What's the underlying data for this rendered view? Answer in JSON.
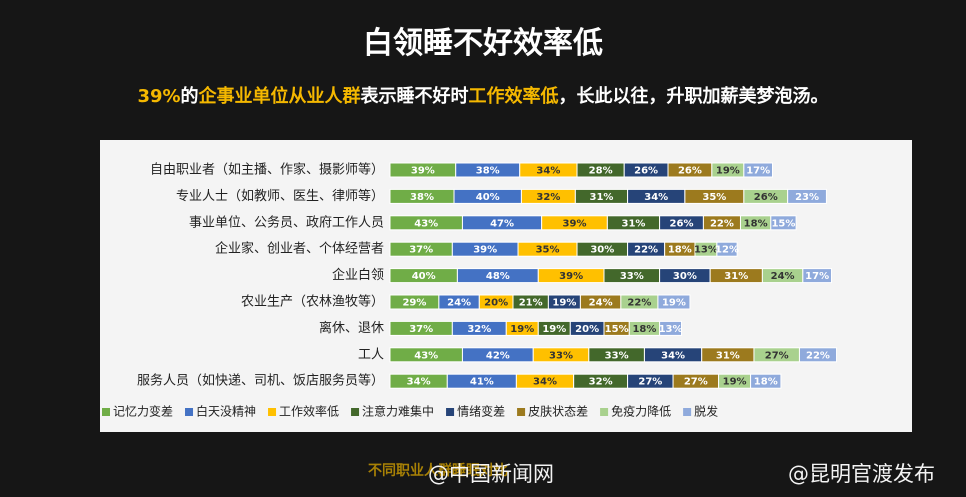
{
  "chart_data": {
    "type": "bar",
    "orientation": "horizontal",
    "stacked": true,
    "title": "白领睡不好效率低",
    "subtitle": [
      {
        "text": "39%",
        "highlight": true
      },
      {
        "text": "的",
        "highlight": false
      },
      {
        "text": "企事业单位从业人群",
        "highlight": true
      },
      {
        "text": "表示睡不好时",
        "highlight": false
      },
      {
        "text": "工作效率低",
        "highlight": true
      },
      {
        "text": "，长此以往，升职加薪美梦泡汤。",
        "highlight": false
      }
    ],
    "categories": [
      "自由职业者（如主播、作家、摄影师等）",
      "专业人士（如教师、医生、律师等）",
      "事业单位、公务员、政府工作人员",
      "企业家、创业者、个体经营者",
      "企业白领",
      "农业生产（农林渔牧等）",
      "离休、退休",
      "工人",
      "服务人员（如快递、司机、饭店服务员等）"
    ],
    "series": [
      {
        "name": "记忆力变差",
        "color": "#70ad47",
        "values": [
          39,
          38,
          43,
          37,
          40,
          29,
          37,
          43,
          34
        ],
        "value_labels": [
          "39%",
          "38%",
          "43%",
          "37%",
          "40%",
          "29%",
          "37%",
          "43%",
          "34%"
        ]
      },
      {
        "name": "白天没精神",
        "color": "#4472c4",
        "values": [
          38,
          40,
          47,
          39,
          48,
          24,
          32,
          42,
          41
        ],
        "value_labels": [
          "38%",
          "40%",
          "47%",
          "39%",
          "48%",
          "24%",
          "32%",
          "42%",
          "41%"
        ]
      },
      {
        "name": "工作效率低",
        "color": "#ffc000",
        "values": [
          34,
          32,
          39,
          35,
          39,
          20,
          19,
          33,
          34
        ],
        "value_labels": [
          "34%",
          "32%",
          "39%",
          "35%",
          "39%",
          "20%",
          "19%",
          "33%",
          "34%"
        ]
      },
      {
        "name": "注意力难集中",
        "color": "#43682b",
        "values": [
          28,
          31,
          31,
          30,
          33,
          21,
          19,
          33,
          32
        ],
        "value_labels": [
          "28%",
          "31%",
          "31%",
          "30%",
          "33%",
          "21%",
          "19%",
          "33%",
          "32%"
        ]
      },
      {
        "name": "情绪变差",
        "color": "#264478",
        "values": [
          26,
          34,
          26,
          22,
          30,
          19,
          20,
          34,
          27
        ],
        "value_labels": [
          "26%",
          "34%",
          "26%",
          "22%",
          "30%",
          "19%",
          "20%",
          "34%",
          "27%"
        ]
      },
      {
        "name": "皮肤状态差",
        "color": "#9c7a1e",
        "values": [
          26,
          35,
          22,
          18,
          31,
          24,
          15,
          31,
          27
        ],
        "value_labels": [
          "26%",
          "35%",
          "22%",
          "18%",
          "31%",
          "24%",
          "15%",
          "31%",
          "27%"
        ]
      },
      {
        "name": "免疫力降低",
        "color": "#a9d18e",
        "values": [
          19,
          26,
          18,
          13,
          24,
          22,
          18,
          27,
          19
        ],
        "value_labels": [
          "19%",
          "26%",
          "18%",
          "13%",
          "24%",
          "22%",
          "18%",
          "27%",
          "19%"
        ]
      },
      {
        "name": "脱发",
        "color": "#8faadc",
        "values": [
          17,
          23,
          15,
          12,
          17,
          19,
          13,
          22,
          18
        ],
        "value_labels": [
          "17%",
          "23%",
          "15%",
          "12%",
          "17%",
          "19%",
          "13%",
          "22%",
          "18%"
        ]
      }
    ],
    "legend": "bottom"
  },
  "caption": "不同职业人群睡眠对比",
  "watermarks": [
    "@中国新闻网",
    "@昆明官渡发布"
  ]
}
